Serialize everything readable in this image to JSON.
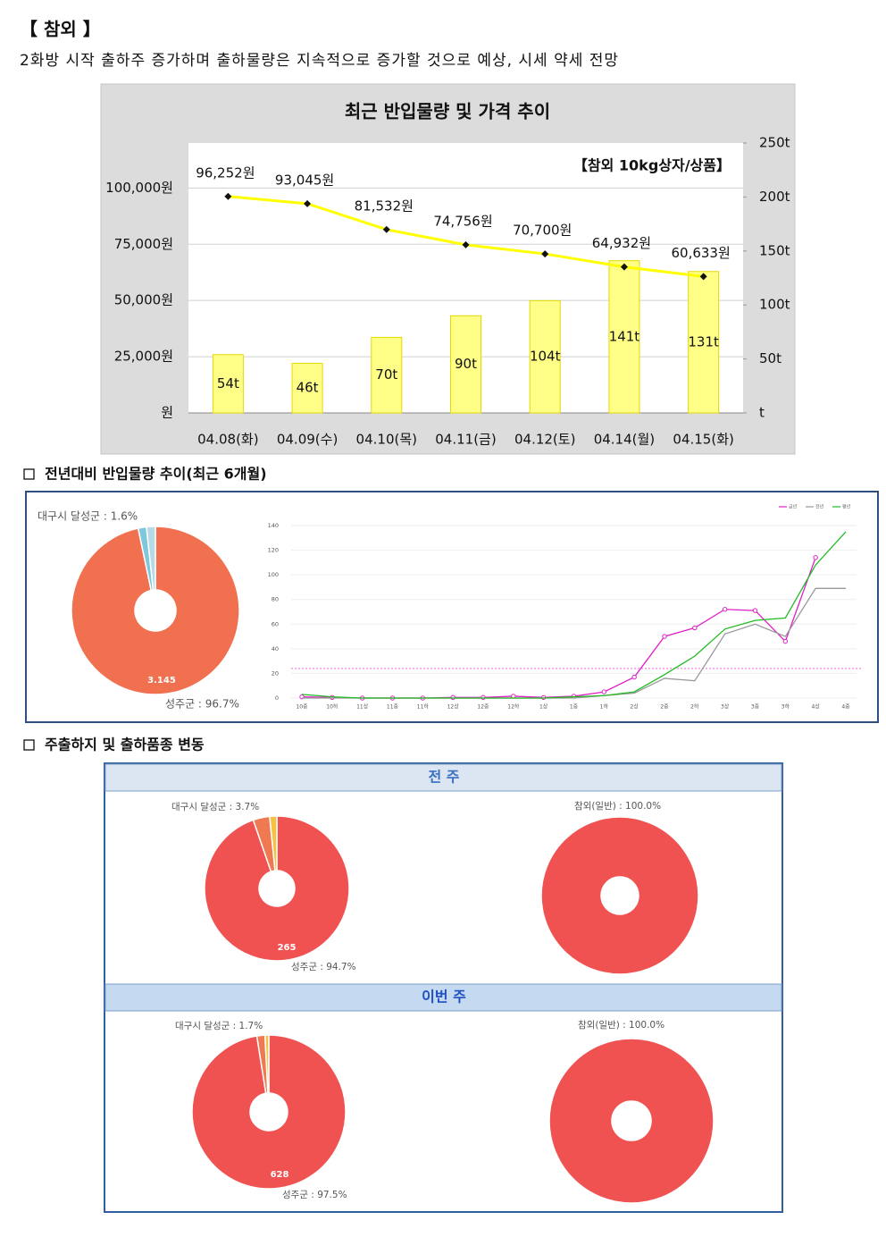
{
  "header": {
    "title": "【 참외 】",
    "summary": "2화방 시작 출하주 증가하며 출하물량은 지속적으로 증가할 것으로 예상, 시세 약세 전망"
  },
  "sections": [
    {
      "title": "전년대비 반입물량 추이(최근 6개월)"
    },
    {
      "title": "주출하지 및 출하품종 변동"
    }
  ],
  "panels": [
    {
      "title": "전 주"
    },
    {
      "title": "이번 주"
    }
  ],
  "chart_data": [
    {
      "type": "bar_line",
      "title": "최근 반입물량 및 가격 추이",
      "annotation": "【참외 10kg상자/상품】",
      "categories": [
        "04.08(화)",
        "04.09(수)",
        "04.10(목)",
        "04.11(금)",
        "04.12(토)",
        "04.14(월)",
        "04.15(화)"
      ],
      "series": [
        {
          "type": "bar",
          "axis": "y2",
          "color": "#ffff88",
          "values": [
            54,
            46,
            70,
            90,
            104,
            141,
            131
          ],
          "value_labels": [
            "54t",
            "46t",
            "70t",
            "90t",
            "104t",
            "141t",
            "131t"
          ]
        },
        {
          "type": "line",
          "color": "#ffff00",
          "values": [
            96252,
            93045,
            81532,
            74756,
            70700,
            64932,
            60633
          ],
          "value_labels": [
            "96,252원",
            "93,045원",
            "81,532원",
            "74,756원",
            "70,700원",
            "64,932원",
            "60,633원"
          ]
        }
      ],
      "ylim": [
        0,
        120000
      ],
      "yticks": [
        {
          "value": 0,
          "label": "원"
        },
        {
          "value": 25000,
          "label": "25,000원"
        },
        {
          "value": 50000,
          "label": "50,000원"
        },
        {
          "value": 75000,
          "label": "75,000원"
        },
        {
          "value": 100000,
          "label": "100,000원"
        }
      ],
      "y2lim": [
        0,
        250
      ],
      "y2ticks": [
        {
          "value": 0,
          "label": "t"
        },
        {
          "value": 50,
          "label": "50t"
        },
        {
          "value": 100,
          "label": "100t"
        },
        {
          "value": 150,
          "label": "150t"
        },
        {
          "value": 200,
          "label": "200t"
        },
        {
          "value": 250,
          "label": "250t"
        }
      ],
      "grid": true
    },
    {
      "type": "pie",
      "donut": true,
      "labels": [
        "성주군 : 96.7%",
        "대구시 달성군 : 1.6%",
        null
      ],
      "values": [
        96.7,
        1.6,
        1.7
      ],
      "colors": [
        "#f1704f",
        "#7fc7dc",
        "#b5dbe6"
      ],
      "annotation": "3.145"
    },
    {
      "type": "line",
      "categories": [
        "10중",
        "10하",
        "11상",
        "11중",
        "11하",
        "12상",
        "12중",
        "12하",
        "1상",
        "1중",
        "1하",
        "2상",
        "2중",
        "2하",
        "3상",
        "3중",
        "3하",
        "4상",
        "4중"
      ],
      "series": [
        {
          "name": "금년",
          "color": "#e020c8",
          "markers": true,
          "values": [
            1,
            0.5,
            0,
            0,
            0,
            0.5,
            0.5,
            1.5,
            0.5,
            1.5,
            5,
            17,
            50,
            57,
            72,
            71,
            46,
            114,
            null
          ]
        },
        {
          "name": "전년",
          "color": "#999999",
          "markers": false,
          "values": [
            0,
            0,
            0,
            0,
            0,
            0,
            0,
            0,
            0,
            0,
            2,
            4,
            16,
            14,
            52,
            60,
            50,
            89,
            89
          ]
        },
        {
          "name": "평년",
          "color": "#22bb22",
          "markers": false,
          "values": [
            3,
            1,
            0,
            0,
            0,
            0,
            0,
            0,
            0,
            1,
            2,
            5,
            19,
            34,
            56,
            63,
            65,
            108,
            135
          ]
        }
      ],
      "ylim": [
        0,
        140
      ],
      "yticks": [
        0,
        20,
        40,
        60,
        80,
        100,
        120,
        140
      ],
      "grid": true,
      "legend": "top-right",
      "reference_line": 24,
      "reference_color": "#ee66dd"
    },
    {
      "type": "pie",
      "donut": true,
      "labels": [
        "성주군 : 94.7%",
        "대구시 달성군 : 3.7%",
        null
      ],
      "values": [
        94.7,
        3.7,
        1.6
      ],
      "colors": [
        "#f05252",
        "#ef7a52",
        "#f5c242"
      ],
      "annotation": "265"
    },
    {
      "type": "pie",
      "donut": true,
      "labels": [
        "참외(일반) : 100.0%"
      ],
      "values": [
        100
      ],
      "colors": [
        "#f05252"
      ]
    },
    {
      "type": "pie",
      "donut": true,
      "labels": [
        "성주군 : 97.5%",
        "대구시 달성군 : 1.7%",
        null
      ],
      "values": [
        97.5,
        1.7,
        0.8
      ],
      "colors": [
        "#f05252",
        "#ef7a52",
        "#f5c242"
      ],
      "annotation": "628"
    },
    {
      "type": "pie",
      "donut": true,
      "labels": [
        "참외(일반) : 100.0%"
      ],
      "values": [
        100
      ],
      "colors": [
        "#f05252"
      ]
    }
  ]
}
